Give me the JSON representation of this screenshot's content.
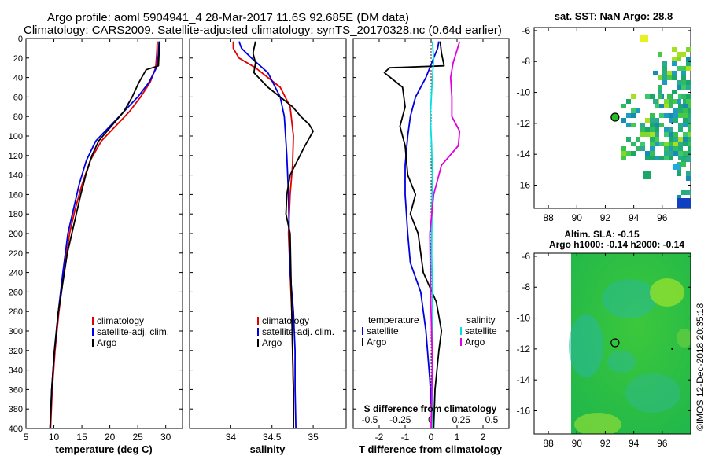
{
  "header": {
    "title_line1": "Argo profile: aoml 5904941_4 28-Mar-2017 11.6S 92.685E (DM data)",
    "title_line2": "Climatology: CARS2009. Satellite-adjusted climatology: synTS_20170328.nc (0.64d earlier)"
  },
  "watermark": "©IMOS 12-Dec-2018 20:35:18",
  "colors": {
    "climatology": "#e00000",
    "satellite": "#0000e0",
    "argo": "#000000",
    "sal_satellite": "#00e0e0",
    "sal_argo": "#e000e0"
  },
  "chart_data": [
    {
      "id": "temperature",
      "type": "line",
      "xlabel": "temperature (deg C)",
      "ylabel": "",
      "xlim": [
        5,
        33
      ],
      "ylim": [
        400,
        0
      ],
      "xticks": [
        5,
        10,
        15,
        20,
        25,
        30
      ],
      "xtick_labels": [
        "5",
        "10",
        "15",
        "20",
        "25",
        "30"
      ],
      "yticks": [
        0,
        20,
        40,
        60,
        80,
        100,
        120,
        140,
        160,
        180,
        200,
        220,
        240,
        260,
        280,
        300,
        320,
        340,
        360,
        380,
        400
      ],
      "legend": [
        "climatology",
        "satellite-adj. clim.",
        "Argo"
      ],
      "series": [
        {
          "name": "climatology",
          "color": "#e00000",
          "x": [
            28.5,
            28.4,
            28.2,
            27.2,
            25.5,
            23.5,
            21.0,
            18.5,
            16.5,
            15.0,
            13.8,
            12.8,
            11.8,
            10.9,
            10.2,
            9.7,
            9.4
          ],
          "y": [
            3,
            15,
            30,
            45,
            60,
            75,
            90,
            105,
            125,
            150,
            175,
            200,
            240,
            280,
            320,
            360,
            400
          ]
        },
        {
          "name": "satellite-adj. clim.",
          "color": "#0000e0",
          "x": [
            28.8,
            28.7,
            28.5,
            27.0,
            25.0,
            22.5,
            20.0,
            17.5,
            15.8,
            14.5,
            13.5,
            12.5,
            11.6,
            10.8,
            10.1,
            9.6,
            9.3
          ],
          "y": [
            3,
            15,
            28,
            45,
            60,
            75,
            90,
            105,
            125,
            150,
            175,
            200,
            240,
            280,
            320,
            360,
            400
          ]
        },
        {
          "name": "Argo",
          "color": "#000000",
          "x": [
            28.9,
            28.8,
            28.7,
            26.5,
            25.2,
            24.0,
            22.5,
            21.0,
            19.5,
            18.0,
            16.8,
            15.7,
            14.8,
            14.0,
            13.2,
            12.4,
            11.6,
            10.8,
            10.1,
            9.6,
            9.3
          ],
          "y": [
            3,
            15,
            28,
            32,
            45,
            60,
            75,
            85,
            95,
            105,
            120,
            140,
            160,
            180,
            200,
            220,
            250,
            280,
            320,
            360,
            400
          ]
        }
      ]
    },
    {
      "id": "salinity",
      "type": "line",
      "xlabel": "salinity",
      "ylabel": "",
      "xlim": [
        33.5,
        35.4
      ],
      "ylim": [
        400,
        0
      ],
      "xticks": [
        34,
        34.5,
        35
      ],
      "xtick_labels": [
        "34",
        "34.5",
        "35"
      ],
      "legend": [
        "climatology",
        "satellite-adj. clim.",
        "Argo"
      ],
      "series": [
        {
          "name": "climatology",
          "color": "#e00000",
          "x": [
            34.03,
            34.03,
            34.1,
            34.3,
            34.6,
            34.72,
            34.76,
            34.75,
            34.72,
            34.7,
            34.72,
            34.74,
            34.75,
            34.76,
            34.76
          ],
          "y": [
            3,
            10,
            20,
            30,
            50,
            70,
            100,
            130,
            160,
            200,
            240,
            280,
            320,
            360,
            400
          ]
        },
        {
          "name": "satellite-adj. clim.",
          "color": "#0000e0",
          "x": [
            34.1,
            34.13,
            34.25,
            34.45,
            34.6,
            34.65,
            34.68,
            34.7,
            34.71,
            34.72,
            34.76,
            34.78,
            34.78,
            34.79
          ],
          "y": [
            3,
            10,
            20,
            35,
            60,
            80,
            120,
            160,
            200,
            240,
            280,
            320,
            360,
            400
          ]
        },
        {
          "name": "Argo",
          "color": "#000000",
          "x": [
            34.3,
            34.27,
            34.3,
            34.28,
            34.45,
            34.75,
            34.85,
            34.95,
            35.0,
            34.9,
            34.72,
            34.68,
            34.67,
            34.72,
            34.73,
            34.74,
            34.75,
            34.76,
            34.76
          ],
          "y": [
            3,
            15,
            25,
            35,
            50,
            70,
            80,
            88,
            95,
            110,
            140,
            160,
            180,
            200,
            240,
            280,
            320,
            360,
            400
          ]
        }
      ]
    },
    {
      "id": "difference",
      "type": "line",
      "xlabel": "T difference from climatology",
      "x2label": "S difference from climatology",
      "ylabel": "",
      "xlim": [
        -3,
        3
      ],
      "ylim": [
        400,
        0
      ],
      "xticks": [
        -2,
        -1,
        0,
        1,
        2
      ],
      "xtick_labels": [
        "-2",
        "-1",
        "0",
        "1",
        "2"
      ],
      "x2ticks": [
        -0.5,
        -0.25,
        0,
        0.25,
        0.5
      ],
      "x2tick_labels": [
        "-0.5",
        "-0.25",
        "0",
        "0.25",
        "0.5"
      ],
      "legend_temperature_title": "temperature",
      "legend_salinity_title": "salinity",
      "legend_temperature": [
        "satellite",
        "Argo"
      ],
      "legend_salinity": [
        "satellite",
        "Argo"
      ],
      "series": [
        {
          "name": "T satellite",
          "color": "#0000e0",
          "x": [
            0.3,
            0.25,
            0.1,
            -0.2,
            -0.6,
            -0.8,
            -0.9,
            -1.0,
            -1.0,
            -0.9,
            -0.8,
            -0.4,
            -0.2,
            -0.05,
            0.05
          ],
          "y": [
            3,
            10,
            20,
            40,
            60,
            80,
            100,
            130,
            160,
            200,
            230,
            260,
            300,
            350,
            400
          ]
        },
        {
          "name": "T Argo",
          "color": "#000000",
          "x": [
            0.35,
            0.4,
            0.5,
            -1.6,
            -1.8,
            -1.1,
            -1.0,
            -1.2,
            -1.0,
            -0.9,
            -0.6,
            -0.8,
            -0.5,
            -0.3,
            0.2,
            0.4,
            0.3,
            0.15,
            0.1
          ],
          "y": [
            3,
            15,
            28,
            30,
            35,
            50,
            70,
            90,
            110,
            140,
            160,
            180,
            200,
            240,
            270,
            300,
            320,
            360,
            400
          ]
        },
        {
          "name": "S satellite",
          "color": "#00e0e0",
          "x": [
            0.05,
            0.1,
            0.03,
            -0.03,
            0.02,
            0.05,
            0.03,
            0.02,
            0.06,
            0.05,
            0.04
          ],
          "y": [
            3,
            20,
            50,
            80,
            110,
            140,
            180,
            220,
            280,
            340,
            400
          ]
        },
        {
          "name": "S Argo",
          "color": "#e000e0",
          "x": [
            1.1,
            0.85,
            0.75,
            0.8,
            0.8,
            1.1,
            1.05,
            0.4,
            0.1,
            -0.05,
            -0.02,
            0.05,
            0.0
          ],
          "y": [
            3,
            25,
            40,
            60,
            80,
            95,
            110,
            130,
            160,
            200,
            260,
            330,
            400
          ]
        }
      ]
    },
    {
      "id": "sst_map",
      "type": "heatmap",
      "title": "sat. SST: NaN Argo: 28.8",
      "xlim": [
        87,
        98
      ],
      "ylim": [
        -17.5,
        -5.8
      ],
      "xticks": [
        88,
        90,
        92,
        94,
        96
      ],
      "xtick_labels": [
        "88",
        "90",
        "92",
        "94",
        "96"
      ],
      "yticks": [
        -16,
        -14,
        -12,
        -10,
        -8,
        -6
      ],
      "ytick_labels": [
        "-16",
        "-14",
        "-12",
        "-10",
        "-8",
        "-6"
      ],
      "argo_position": [
        92.685,
        -11.6
      ],
      "argo_marker_color": "#22c022"
    },
    {
      "id": "sla_map",
      "type": "heatmap",
      "title_line1": "Altim. SLA: -0.15",
      "title_line2": "Argo h1000: -0.14 h2000: -0.14",
      "xlim": [
        87,
        98
      ],
      "ylim": [
        -17.5,
        -5.8
      ],
      "xticks": [
        88,
        90,
        92,
        94,
        96
      ],
      "xtick_labels": [
        "88",
        "90",
        "92",
        "94",
        "96"
      ],
      "yticks": [
        -16,
        -14,
        -12,
        -10,
        -8,
        -6
      ],
      "ytick_labels": [
        "-16",
        "-14",
        "-12",
        "-10",
        "-8",
        "-6"
      ],
      "argo_position": [
        92.685,
        -11.6
      ]
    }
  ]
}
